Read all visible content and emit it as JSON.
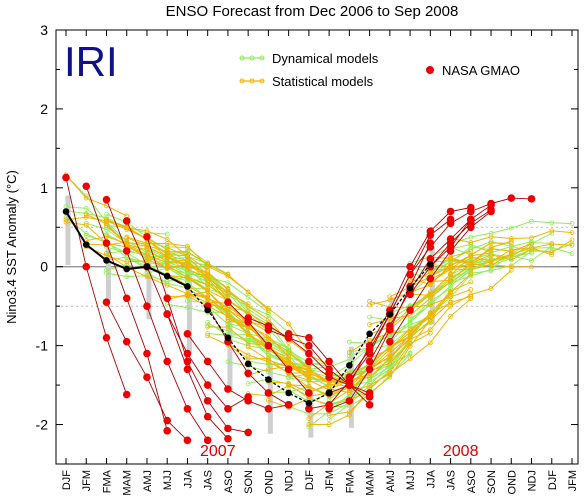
{
  "chart_data": {
    "type": "line",
    "title": "ENSO Forecast from Dec 2006 to Sep 2008",
    "logo": "IRI",
    "ylabel": "Nino3.4 SST Anomaly (°C)",
    "ylim": [
      -2.5,
      3
    ],
    "yticks": [
      -2,
      -1,
      0,
      1,
      2,
      3
    ],
    "reference_lines": [
      0.5,
      -0.5
    ],
    "categories": [
      "DJF",
      "JFM",
      "FMA",
      "MAM",
      "AMJ",
      "MJJ",
      "JJA",
      "JAS",
      "ASO",
      "SON",
      "OND",
      "NDJ",
      "DJF",
      "JFM",
      "FMA",
      "MAM",
      "AMJ",
      "MJJ",
      "JJA",
      "JAS",
      "ASO",
      "SON",
      "OND",
      "NDJ",
      "DJF",
      "JFM"
    ],
    "year_labels": [
      {
        "text": "2007",
        "index": 7.5
      },
      {
        "text": "2008",
        "index": 19.5
      }
    ],
    "legend": [
      {
        "label": "Dynamical models",
        "color": "#90ee5a"
      },
      {
        "label": "Statistical models",
        "color": "#f0b400"
      },
      {
        "label": "NASA GMAO",
        "color": "#ee0000"
      }
    ],
    "observed": {
      "color": "#000000",
      "values": [
        0.7,
        0.28,
        0.08,
        -0.03,
        0.0,
        -0.12,
        -0.25,
        -0.55,
        -0.9,
        -1.23,
        -1.43,
        -1.6,
        -1.73,
        -1.6,
        -1.25,
        -0.85,
        -0.6,
        -0.27,
        0.03
      ]
    },
    "nasa_gmao": {
      "color": "#ee0000",
      "runs": [
        {
          "start": 0,
          "values": [
            1.13,
            0.0,
            -0.9,
            -1.62
          ]
        },
        {
          "start": 1,
          "values": [
            1.02,
            0.3,
            -0.4,
            -1.1,
            -2.08
          ]
        },
        {
          "start": 2,
          "values": [
            0.85,
            0.2,
            -0.5,
            -1.2,
            -1.8,
            -2.2
          ]
        },
        {
          "start": 3,
          "values": [
            0.58,
            0.0,
            -0.6,
            -1.3,
            -1.9,
            -2.18
          ]
        },
        {
          "start": 4,
          "values": [
            0.38,
            -0.4,
            -1.2,
            -1.7,
            -2.05,
            -2.1
          ]
        },
        {
          "start": 2,
          "values": [
            -0.45,
            -0.95,
            -1.4,
            -1.95,
            -2.2
          ]
        },
        {
          "start": 5,
          "values": [
            -0.6,
            -1.1,
            -1.5,
            -1.8,
            -1.65
          ]
        },
        {
          "start": 6,
          "values": [
            -0.85,
            -1.2,
            -1.55,
            -1.7,
            -1.8,
            -1.75
          ]
        },
        {
          "start": 7,
          "values": [
            -0.5,
            -0.95,
            -1.35,
            -1.6,
            -1.75
          ]
        },
        {
          "start": 8,
          "values": [
            -0.45,
            -0.7,
            -1.0,
            -1.3,
            -1.6
          ]
        },
        {
          "start": 9,
          "values": [
            -0.65,
            -0.75,
            -0.9,
            -1.1,
            -1.35
          ]
        },
        {
          "start": 10,
          "values": [
            -0.8,
            -0.9,
            -1.0,
            -1.3,
            -1.5,
            -1.65
          ]
        },
        {
          "start": 11,
          "values": [
            -0.85,
            -0.9,
            -1.2,
            -1.5,
            -1.75
          ]
        },
        {
          "start": 12,
          "values": [
            -1.2,
            -1.4,
            -1.5,
            -1.6
          ]
        },
        {
          "start": 13,
          "values": [
            -1.8,
            -1.7,
            -1.3,
            -0.8,
            -0.25,
            0.3
          ]
        },
        {
          "start": 12,
          "values": [
            -1.8,
            -1.75,
            -1.45,
            -1.1,
            -0.6,
            -0.1,
            0.4,
            0.6
          ]
        },
        {
          "start": 13,
          "values": [
            -1.6,
            -1.5,
            -1.0,
            -0.55,
            0.0,
            0.45,
            0.7,
            0.75
          ]
        },
        {
          "start": 14,
          "values": [
            -1.4,
            -1.05,
            -0.6,
            -0.1,
            0.25,
            0.55,
            0.7,
            0.8,
            0.87,
            0.86
          ]
        },
        {
          "start": 15,
          "values": [
            -1.2,
            -0.75,
            -0.3,
            0.1,
            0.35,
            0.6
          ]
        },
        {
          "start": 16,
          "values": [
            -0.95,
            -0.55,
            -0.15,
            0.2,
            0.5,
            0.7
          ]
        },
        {
          "start": 17,
          "values": [
            -0.35,
            0.0,
            0.3,
            0.55,
            0.72
          ]
        },
        {
          "start": 18,
          "values": [
            0.0,
            0.25,
            0.6,
            0.78
          ]
        }
      ]
    }
  }
}
